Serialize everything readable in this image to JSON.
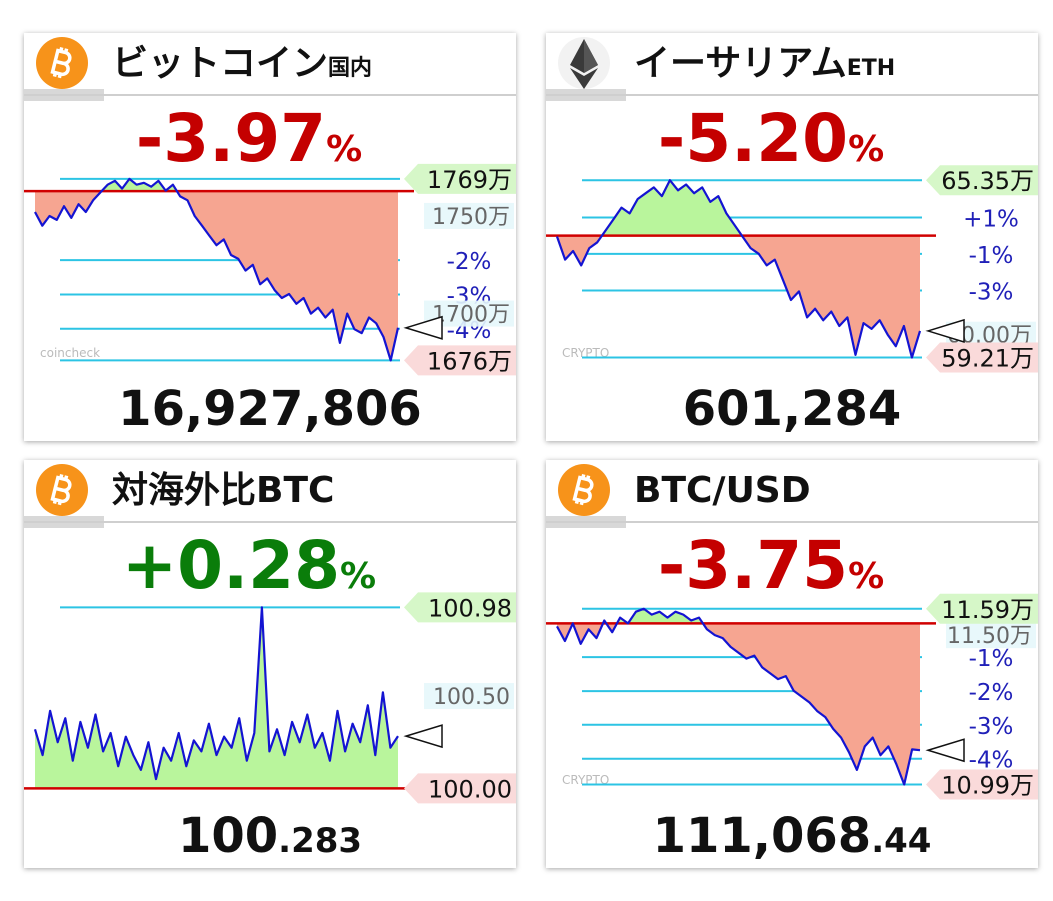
{
  "chart_data": [
    {
      "type": "line",
      "title": "ビットコイン",
      "title_sub": "国内",
      "change": "-3.97",
      "change_unit": "%",
      "change_color": "#c40000",
      "price_main": "16,927,806",
      "watermark": "coincheck",
      "ylim": [
        1667,
        1772
      ],
      "ref": 1762.7,
      "yticks": [
        {
          "value": 1727.4,
          "label": "-2%"
        },
        {
          "value": 1709.8,
          "label": "-3%"
        },
        {
          "value": 1692.2,
          "label": "-4%"
        }
      ],
      "price_ticks": [
        {
          "value": 1750,
          "label": "1750万"
        },
        {
          "value": 1700,
          "label": "1700万"
        }
      ],
      "high": {
        "value": 1769,
        "label": "1769万"
      },
      "low": {
        "value": 1676,
        "label": "1676万"
      },
      "line_color": "#1414d2",
      "up_color": "#b9f59c",
      "down_color": "#f6a591",
      "values": [
        1752,
        1745,
        1750,
        1748,
        1755,
        1749,
        1756,
        1752,
        1758,
        1762,
        1766,
        1768,
        1764,
        1769,
        1766,
        1767,
        1765,
        1768,
        1763,
        1766,
        1760,
        1758,
        1750,
        1745,
        1740,
        1735,
        1738,
        1730,
        1728,
        1722,
        1725,
        1715,
        1718,
        1712,
        1708,
        1710,
        1705,
        1708,
        1700,
        1703,
        1698,
        1702,
        1685,
        1700,
        1692,
        1690,
        1698,
        1695,
        1688,
        1676,
        1692.7
      ]
    },
    {
      "type": "line",
      "title": "イーサリアム",
      "title_sub": "ETH",
      "change": "-5.20",
      "change_unit": "%",
      "change_color": "#c40000",
      "price_main": "601,284",
      "watermark": "CRYPTO",
      "ylim": [
        58.5,
        65.6
      ],
      "ref": 63.43,
      "yticks": [
        {
          "value": 64.06,
          "label": "+1%"
        },
        {
          "value": 62.8,
          "label": "-1%"
        },
        {
          "value": 61.53,
          "label": "-3%"
        }
      ],
      "price_ticks": [
        {
          "value": 60,
          "label": "60.00万"
        }
      ],
      "high": {
        "value": 65.35,
        "label": "65.35万"
      },
      "low": {
        "value": 59.21,
        "label": "59.21万"
      },
      "line_color": "#1414d2",
      "up_color": "#b9f59c",
      "down_color": "#f6a591",
      "values": [
        63.4,
        62.6,
        62.9,
        62.4,
        63.0,
        63.2,
        63.6,
        64.0,
        64.4,
        64.2,
        64.7,
        64.9,
        65.1,
        64.8,
        65.35,
        65.0,
        65.2,
        64.9,
        65.1,
        64.6,
        64.8,
        64.2,
        63.8,
        63.4,
        63.0,
        62.8,
        62.4,
        62.6,
        61.9,
        61.2,
        61.5,
        60.6,
        60.9,
        60.5,
        60.8,
        60.3,
        60.6,
        59.3,
        60.4,
        60.2,
        60.5,
        60.0,
        59.6,
        60.3,
        59.21,
        60.13
      ]
    },
    {
      "type": "line",
      "title": "対海外比BTC",
      "change": "+0.28",
      "change_unit": "%",
      "change_color": "#0a7d0a",
      "price_main": "100",
      "price_sub": ".283",
      "ylim": [
        99.91,
        101.02
      ],
      "ref": 100.0,
      "price_ticks": [
        {
          "value": 100.5,
          "label": "100.50"
        }
      ],
      "high": {
        "value": 100.98,
        "label": "100.98"
      },
      "low": {
        "value": 100.0,
        "label": "100.00"
      },
      "line_color": "#1414d2",
      "up_color": "#b9f59c",
      "down_color": "#f6a591",
      "values": [
        100.32,
        100.18,
        100.42,
        100.25,
        100.38,
        100.15,
        100.36,
        100.22,
        100.4,
        100.2,
        100.3,
        100.12,
        100.28,
        100.18,
        100.1,
        100.25,
        100.05,
        100.22,
        100.15,
        100.3,
        100.12,
        100.26,
        100.2,
        100.35,
        100.18,
        100.28,
        100.22,
        100.38,
        100.15,
        100.3,
        100.98,
        100.2,
        100.32,
        100.18,
        100.36,
        100.25,
        100.4,
        100.22,
        100.3,
        100.15,
        100.42,
        100.2,
        100.35,
        100.25,
        100.45,
        100.18,
        100.52,
        100.22,
        100.283
      ]
    },
    {
      "type": "line",
      "title": "BTC/USD",
      "change": "-3.75",
      "change_unit": "%",
      "change_color": "#c40000",
      "price_main": "111,068",
      "price_sub": ".44",
      "watermark": "CRYPTO",
      "ylim": [
        10.92,
        11.62
      ],
      "ref": 11.54,
      "yticks": [
        {
          "value": 11.425,
          "label": "-1%"
        },
        {
          "value": 11.309,
          "label": "-2%"
        },
        {
          "value": 11.194,
          "label": "-3%"
        },
        {
          "value": 11.078,
          "label": "-4%"
        }
      ],
      "price_ticks": [
        {
          "value": 11.5,
          "label": "11.50万"
        }
      ],
      "high": {
        "value": 11.59,
        "label": "11.59万"
      },
      "low": {
        "value": 10.99,
        "label": "10.99万"
      },
      "line_color": "#1414d2",
      "up_color": "#b9f59c",
      "down_color": "#f6a591",
      "values": [
        11.53,
        11.48,
        11.54,
        11.47,
        11.52,
        11.49,
        11.55,
        11.51,
        11.56,
        11.54,
        11.58,
        11.59,
        11.57,
        11.58,
        11.56,
        11.58,
        11.57,
        11.55,
        11.56,
        11.52,
        11.5,
        11.49,
        11.46,
        11.44,
        11.42,
        11.43,
        11.39,
        11.37,
        11.35,
        11.36,
        11.31,
        11.29,
        11.27,
        11.24,
        11.22,
        11.18,
        11.15,
        11.1,
        11.04,
        11.12,
        11.15,
        11.09,
        11.12,
        11.06,
        10.99,
        11.11,
        11.107
      ]
    }
  ]
}
